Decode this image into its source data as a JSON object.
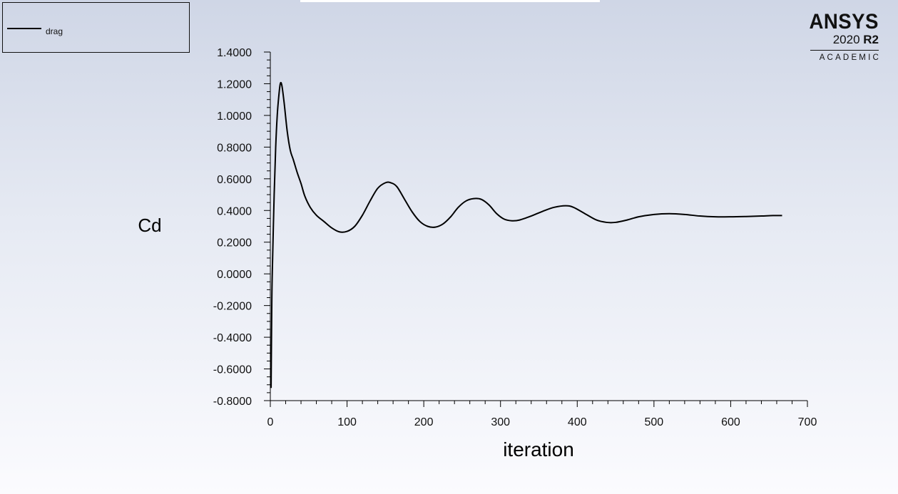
{
  "brand": {
    "name": "ANSYS",
    "version": "2020",
    "release": "R2",
    "edition": "ACADEMIC"
  },
  "chart_data": {
    "type": "line",
    "title": "",
    "xlabel": "iteration",
    "ylabel": "Cd",
    "xlim": [
      0,
      700
    ],
    "ylim": [
      -0.8,
      1.4
    ],
    "x_ticks": [
      "0",
      "100",
      "200",
      "300",
      "400",
      "500",
      "600",
      "700"
    ],
    "y_ticks": [
      "-0.8000",
      "-0.6000",
      "-0.4000",
      "-0.2000",
      "0.0000",
      "0.2000",
      "0.4000",
      "0.6000",
      "0.8000",
      "1.0000",
      "1.2000",
      "1.4000"
    ],
    "legend": {
      "position": "top-left",
      "entries": [
        "drag"
      ]
    },
    "series": [
      {
        "name": "drag",
        "color": "#000000",
        "points": [
          [
            1,
            -0.72
          ],
          [
            2,
            -0.15
          ],
          [
            3,
            0.1
          ],
          [
            5,
            0.5
          ],
          [
            7,
            0.8
          ],
          [
            9,
            1.0
          ],
          [
            11,
            1.12
          ],
          [
            13,
            1.2
          ],
          [
            15,
            1.19
          ],
          [
            18,
            1.08
          ],
          [
            22,
            0.9
          ],
          [
            26,
            0.78
          ],
          [
            30,
            0.72
          ],
          [
            35,
            0.64
          ],
          [
            40,
            0.57
          ],
          [
            45,
            0.49
          ],
          [
            52,
            0.42
          ],
          [
            60,
            0.37
          ],
          [
            70,
            0.33
          ],
          [
            80,
            0.29
          ],
          [
            90,
            0.265
          ],
          [
            100,
            0.268
          ],
          [
            110,
            0.3
          ],
          [
            120,
            0.37
          ],
          [
            130,
            0.46
          ],
          [
            140,
            0.54
          ],
          [
            150,
            0.575
          ],
          [
            157,
            0.575
          ],
          [
            165,
            0.55
          ],
          [
            175,
            0.47
          ],
          [
            185,
            0.39
          ],
          [
            195,
            0.33
          ],
          [
            205,
            0.3
          ],
          [
            215,
            0.295
          ],
          [
            225,
            0.315
          ],
          [
            235,
            0.36
          ],
          [
            245,
            0.42
          ],
          [
            255,
            0.46
          ],
          [
            265,
            0.475
          ],
          [
            275,
            0.47
          ],
          [
            285,
            0.435
          ],
          [
            295,
            0.38
          ],
          [
            305,
            0.345
          ],
          [
            315,
            0.335
          ],
          [
            325,
            0.34
          ],
          [
            340,
            0.365
          ],
          [
            355,
            0.395
          ],
          [
            370,
            0.42
          ],
          [
            385,
            0.43
          ],
          [
            395,
            0.42
          ],
          [
            410,
            0.38
          ],
          [
            425,
            0.34
          ],
          [
            438,
            0.325
          ],
          [
            450,
            0.325
          ],
          [
            465,
            0.34
          ],
          [
            480,
            0.36
          ],
          [
            500,
            0.375
          ],
          [
            520,
            0.38
          ],
          [
            540,
            0.375
          ],
          [
            560,
            0.365
          ],
          [
            580,
            0.36
          ],
          [
            600,
            0.36
          ],
          [
            620,
            0.362
          ],
          [
            640,
            0.365
          ],
          [
            655,
            0.368
          ],
          [
            667,
            0.368
          ]
        ]
      }
    ]
  }
}
